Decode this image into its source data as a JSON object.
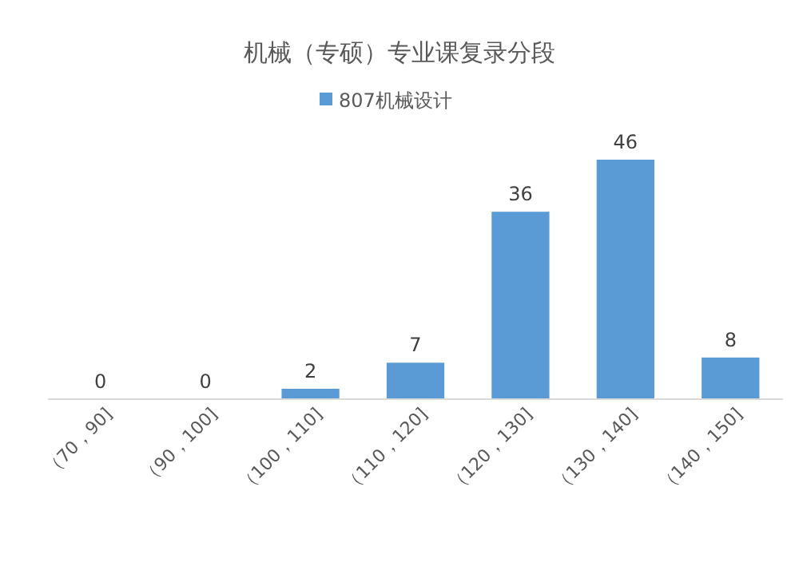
{
  "chart_data": {
    "type": "bar",
    "title": "机械（专硕）专业课复录分段",
    "categories": [
      "（70，90]",
      "（90，100]",
      "（100，110]",
      "（110，120]",
      "（120，130]",
      "（130，140]",
      "（140，150]"
    ],
    "series": [
      {
        "name": "807机械设计",
        "color": "#5b9bd5",
        "values": [
          0,
          0,
          2,
          7,
          36,
          46,
          8
        ]
      }
    ],
    "data_labels": true,
    "legend": "top"
  }
}
